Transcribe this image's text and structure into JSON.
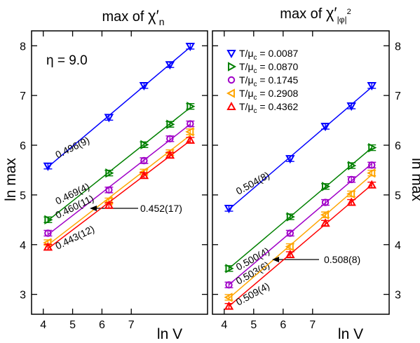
{
  "chart_data": [
    {
      "type": "scatter",
      "title_prefix": "max of ",
      "title_symbol": "χ′",
      "title_sub": "n",
      "xlabel": "ln V",
      "ylabel": "ln max",
      "xlim": [
        3.6,
        9.6
      ],
      "ylim": [
        2.6,
        8.3
      ],
      "x_ticks": [
        4,
        5,
        6,
        7
      ],
      "y_ticks": [
        3,
        4,
        5,
        6,
        7,
        8
      ],
      "x_tick_labels": [
        "4",
        "5",
        "6",
        "7"
      ],
      "y_tick_labels": [
        "3",
        "4",
        "5",
        "6",
        "7",
        "8"
      ],
      "annotation": "η = 9.0",
      "x": [
        4.159,
        6.238,
        7.434,
        8.318,
        9.01
      ],
      "series": [
        {
          "name": "T/μc = 0.0087",
          "color": "#0000ff",
          "marker": "tri-down",
          "values": [
            5.58,
            6.56,
            7.2,
            7.62,
            7.99
          ],
          "fit_label": "0.496(9)"
        },
        {
          "name": "T/μc = 0.0870",
          "color": "#008000",
          "marker": "tri-right",
          "values": [
            4.5,
            5.44,
            6.01,
            6.42,
            6.78
          ],
          "fit_label": "0.469(4)"
        },
        {
          "name": "T/μc = 0.1745",
          "color": "#a000c8",
          "marker": "circle",
          "values": [
            4.23,
            5.1,
            5.69,
            6.13,
            6.43
          ],
          "fit_label": "0.460(11)"
        },
        {
          "name": "T/μc = 0.2908",
          "color": "#ffa500",
          "marker": "tri-left",
          "values": [
            4.04,
            4.88,
            5.46,
            5.85,
            6.27
          ],
          "fit_label": "0.452(17)"
        },
        {
          "name": "T/μc = 0.4362",
          "color": "#ff0000",
          "marker": "tri-up",
          "values": [
            3.95,
            4.79,
            5.39,
            5.8,
            6.1
          ],
          "fit_label": "0.443(12)"
        }
      ]
    },
    {
      "type": "scatter",
      "title_prefix": "max of ",
      "title_symbol": "χ′",
      "title_sub": "|φ|",
      "title_sup": "2",
      "xlabel": "ln V",
      "ylabel": "ln max",
      "xlim": [
        3.6,
        9.6
      ],
      "ylim": [
        2.6,
        8.3
      ],
      "x_ticks": [
        4,
        5,
        6,
        7
      ],
      "y_ticks": [
        3,
        4,
        5,
        6,
        7,
        8
      ],
      "x_tick_labels": [
        "4",
        "5",
        "6",
        "7"
      ],
      "y_tick_labels": [
        "3",
        "4",
        "5",
        "6",
        "7",
        "8"
      ],
      "legend_position": "top-left",
      "x": [
        4.159,
        6.238,
        7.434,
        8.318,
        9.01
      ],
      "series": [
        {
          "name": "T/μc = 0.0087",
          "legend_main": "T/μ",
          "legend_sub": "c",
          "legend_rest": " = 0.0087",
          "color": "#0000ff",
          "marker": "tri-down",
          "values": [
            4.73,
            5.73,
            6.38,
            6.79,
            7.2
          ],
          "fit_label": "0.504(8)"
        },
        {
          "name": "T/μc = 0.0870",
          "legend_main": "T/μ",
          "legend_sub": "c",
          "legend_rest": " = 0.0870",
          "color": "#008000",
          "marker": "tri-right",
          "values": [
            3.52,
            4.56,
            5.17,
            5.59,
            5.95
          ],
          "fit_label": "0.500(4)"
        },
        {
          "name": "T/μc = 0.1745",
          "legend_main": "T/μ",
          "legend_sub": "c",
          "legend_rest": " = 0.1745",
          "color": "#a000c8",
          "marker": "circle",
          "values": [
            3.19,
            4.23,
            4.85,
            5.31,
            5.6
          ],
          "fit_label": "0.503(6)"
        },
        {
          "name": "T/μc = 0.2908",
          "legend_main": "T/μ",
          "legend_sub": "c",
          "legend_rest": " = 0.2908",
          "color": "#ffa500",
          "marker": "tri-left",
          "values": [
            2.94,
            3.96,
            4.6,
            5.02,
            5.44
          ],
          "fit_label": "0.508(8)"
        },
        {
          "name": "T/μc = 0.4362",
          "legend_main": "T/μ",
          "legend_sub": "c",
          "legend_rest": " = 0.4362",
          "color": "#ff0000",
          "marker": "tri-up",
          "values": [
            2.76,
            3.8,
            4.43,
            4.85,
            5.2
          ],
          "fit_label": "0.509(4)"
        }
      ]
    }
  ]
}
